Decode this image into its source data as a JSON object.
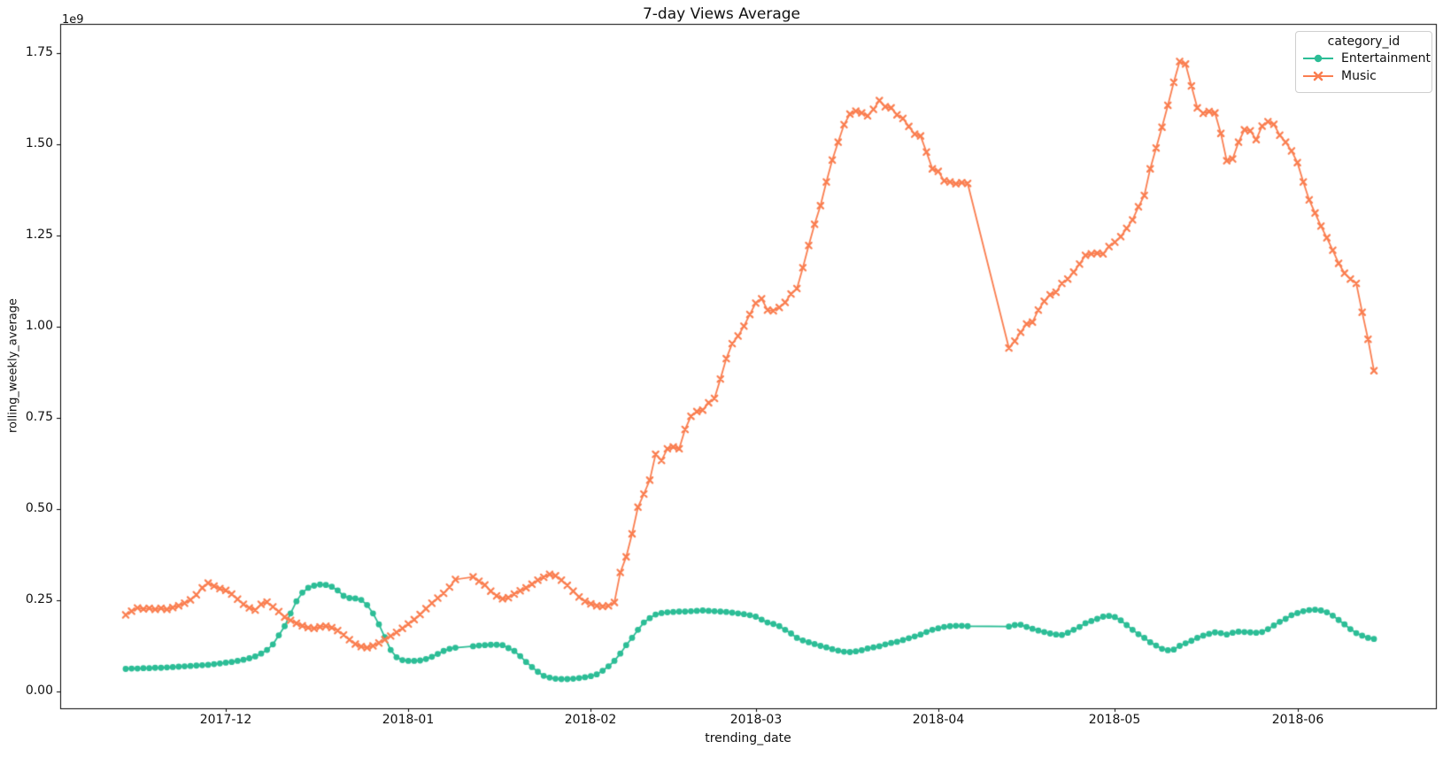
{
  "figure": {
    "title": "7-day Views Average",
    "xlabel": "trending_date",
    "ylabel": "rolling_weekly_average",
    "offset_label": "1e9",
    "background_color": "#ffffff",
    "spine_color": "#000000"
  },
  "legend": {
    "title": "category_id",
    "position": "upper right",
    "entries": [
      {
        "label": "Entertainment",
        "color": "#2cbd96",
        "marker": "circle"
      },
      {
        "label": "Music",
        "color": "#fa7e50",
        "marker": "x"
      }
    ]
  },
  "chart_data": {
    "type": "line",
    "title": "7-day Views Average",
    "xlabel": "trending_date",
    "ylabel": "rolling_weekly_average",
    "y_scale_factor": 1000000000,
    "y_offset_label": "1e9",
    "grid": false,
    "legend_position": "upper right",
    "ylim_1e9": [
      -0.045,
      1.83
    ],
    "y_tick_labels": [
      "0.00",
      "0.25",
      "0.50",
      "0.75",
      "1.00",
      "1.25",
      "1.50",
      "1.75"
    ],
    "x_tick_labels": [
      "2017-12",
      "2018-01",
      "2018-02",
      "2018-03",
      "2018-04",
      "2018-05",
      "2018-06"
    ],
    "missing_dates_note": "null values = dates absent from data; line connects across gaps without markers",
    "dates": [
      "2017-11-14",
      "2017-11-15",
      "2017-11-16",
      "2017-11-17",
      "2017-11-18",
      "2017-11-19",
      "2017-11-20",
      "2017-11-21",
      "2017-11-22",
      "2017-11-23",
      "2017-11-24",
      "2017-11-25",
      "2017-11-26",
      "2017-11-27",
      "2017-11-28",
      "2017-11-29",
      "2017-11-30",
      "2017-12-01",
      "2017-12-02",
      "2017-12-03",
      "2017-12-04",
      "2017-12-05",
      "2017-12-06",
      "2017-12-07",
      "2017-12-08",
      "2017-12-09",
      "2017-12-10",
      "2017-12-11",
      "2017-12-12",
      "2017-12-13",
      "2017-12-14",
      "2017-12-15",
      "2017-12-16",
      "2017-12-17",
      "2017-12-18",
      "2017-12-19",
      "2017-12-20",
      "2017-12-21",
      "2017-12-22",
      "2017-12-23",
      "2017-12-24",
      "2017-12-25",
      "2017-12-26",
      "2017-12-27",
      "2017-12-28",
      "2017-12-29",
      "2017-12-30",
      "2017-12-31",
      "2018-01-01",
      "2018-01-02",
      "2018-01-03",
      "2018-01-04",
      "2018-01-05",
      "2018-01-06",
      "2018-01-07",
      "2018-01-08",
      "2018-01-09",
      "2018-01-10",
      "2018-01-11",
      "2018-01-12",
      "2018-01-13",
      "2018-01-14",
      "2018-01-15",
      "2018-01-16",
      "2018-01-17",
      "2018-01-18",
      "2018-01-19",
      "2018-01-20",
      "2018-01-21",
      "2018-01-22",
      "2018-01-23",
      "2018-01-24",
      "2018-01-25",
      "2018-01-26",
      "2018-01-27",
      "2018-01-28",
      "2018-01-29",
      "2018-01-30",
      "2018-01-31",
      "2018-02-01",
      "2018-02-02",
      "2018-02-03",
      "2018-02-04",
      "2018-02-05",
      "2018-02-06",
      "2018-02-07",
      "2018-02-08",
      "2018-02-09",
      "2018-02-10",
      "2018-02-11",
      "2018-02-12",
      "2018-02-13",
      "2018-02-14",
      "2018-02-15",
      "2018-02-16",
      "2018-02-17",
      "2018-02-18",
      "2018-02-19",
      "2018-02-20",
      "2018-02-21",
      "2018-02-22",
      "2018-02-23",
      "2018-02-24",
      "2018-02-25",
      "2018-02-26",
      "2018-02-27",
      "2018-02-28",
      "2018-03-01",
      "2018-03-02",
      "2018-03-03",
      "2018-03-04",
      "2018-03-05",
      "2018-03-06",
      "2018-03-07",
      "2018-03-08",
      "2018-03-09",
      "2018-03-10",
      "2018-03-11",
      "2018-03-12",
      "2018-03-13",
      "2018-03-14",
      "2018-03-15",
      "2018-03-16",
      "2018-03-17",
      "2018-03-18",
      "2018-03-19",
      "2018-03-20",
      "2018-03-21",
      "2018-03-22",
      "2018-03-23",
      "2018-03-24",
      "2018-03-25",
      "2018-03-26",
      "2018-03-27",
      "2018-03-28",
      "2018-03-29",
      "2018-03-30",
      "2018-03-31",
      "2018-04-01",
      "2018-04-02",
      "2018-04-03",
      "2018-04-04",
      "2018-04-05",
      "2018-04-06",
      "2018-04-07",
      "2018-04-08",
      "2018-04-09",
      "2018-04-10",
      "2018-04-11",
      "2018-04-12",
      "2018-04-13",
      "2018-04-14",
      "2018-04-15",
      "2018-04-16",
      "2018-04-17",
      "2018-04-18",
      "2018-04-19",
      "2018-04-20",
      "2018-04-21",
      "2018-04-22",
      "2018-04-23",
      "2018-04-24",
      "2018-04-25",
      "2018-04-26",
      "2018-04-27",
      "2018-04-28",
      "2018-04-29",
      "2018-04-30",
      "2018-05-01",
      "2018-05-02",
      "2018-05-03",
      "2018-05-04",
      "2018-05-05",
      "2018-05-06",
      "2018-05-07",
      "2018-05-08",
      "2018-05-09",
      "2018-05-10",
      "2018-05-11",
      "2018-05-12",
      "2018-05-13",
      "2018-05-14",
      "2018-05-15",
      "2018-05-16",
      "2018-05-17",
      "2018-05-18",
      "2018-05-19",
      "2018-05-20",
      "2018-05-21",
      "2018-05-22",
      "2018-05-23",
      "2018-05-24",
      "2018-05-25",
      "2018-05-26",
      "2018-05-27",
      "2018-05-28",
      "2018-05-29",
      "2018-05-30",
      "2018-05-31",
      "2018-06-01",
      "2018-06-02",
      "2018-06-03",
      "2018-06-04",
      "2018-06-05",
      "2018-06-06",
      "2018-06-07",
      "2018-06-08",
      "2018-06-09",
      "2018-06-10",
      "2018-06-11",
      "2018-06-12",
      "2018-06-13",
      "2018-06-14"
    ],
    "series": [
      {
        "name": "Entertainment",
        "color": "#2cbd96",
        "marker": "circle",
        "values_1e9": [
          0.063,
          0.064,
          0.064,
          0.065,
          0.065,
          0.066,
          0.066,
          0.067,
          0.068,
          0.069,
          0.07,
          0.071,
          0.072,
          0.073,
          0.074,
          0.076,
          0.078,
          0.08,
          0.082,
          0.085,
          0.088,
          0.092,
          0.097,
          0.105,
          0.115,
          0.13,
          0.155,
          0.18,
          0.215,
          0.248,
          0.272,
          0.285,
          0.291,
          0.294,
          0.293,
          0.288,
          0.278,
          0.263,
          0.257,
          0.256,
          0.252,
          0.238,
          0.215,
          0.185,
          0.15,
          0.115,
          0.095,
          0.087,
          0.085,
          0.085,
          0.086,
          0.09,
          0.096,
          0.104,
          0.112,
          0.118,
          0.121,
          null,
          null,
          0.125,
          0.127,
          0.128,
          0.129,
          0.129,
          0.128,
          0.12,
          0.112,
          0.098,
          0.082,
          0.068,
          0.055,
          0.044,
          0.039,
          0.036,
          0.035,
          0.035,
          0.036,
          0.038,
          0.04,
          0.043,
          0.048,
          0.058,
          0.07,
          0.085,
          0.105,
          0.128,
          0.148,
          0.17,
          0.19,
          0.202,
          0.212,
          0.216,
          0.218,
          0.219,
          0.22,
          0.22,
          0.221,
          0.222,
          0.223,
          0.222,
          0.221,
          0.22,
          0.219,
          0.217,
          0.215,
          0.213,
          0.21,
          0.206,
          0.198,
          0.19,
          0.186,
          0.18,
          0.17,
          0.16,
          0.148,
          0.141,
          0.136,
          0.131,
          0.126,
          0.122,
          0.117,
          0.113,
          0.11,
          0.109,
          0.111,
          0.114,
          0.119,
          0.122,
          0.125,
          0.13,
          0.134,
          0.137,
          0.142,
          0.147,
          0.152,
          0.157,
          0.164,
          0.17,
          0.174,
          0.178,
          0.18,
          0.181,
          0.181,
          0.18,
          null,
          null,
          null,
          null,
          null,
          null,
          0.179,
          0.183,
          0.184,
          0.178,
          0.173,
          0.168,
          0.164,
          0.16,
          0.157,
          0.156,
          0.162,
          0.17,
          0.178,
          0.188,
          0.194,
          0.2,
          0.206,
          0.208,
          0.205,
          0.196,
          0.183,
          0.17,
          0.158,
          0.148,
          0.136,
          0.127,
          0.118,
          0.114,
          0.116,
          0.126,
          0.133,
          0.14,
          0.148,
          0.154,
          0.159,
          0.163,
          0.161,
          0.157,
          0.162,
          0.165,
          0.164,
          0.163,
          0.162,
          0.164,
          0.172,
          0.182,
          0.192,
          0.2,
          0.21,
          0.216,
          0.221,
          0.224,
          0.225,
          0.223,
          0.218,
          0.209,
          0.197,
          0.185,
          0.172,
          0.161,
          0.154,
          0.148,
          0.145
        ]
      },
      {
        "name": "Music",
        "color": "#fa7e50",
        "marker": "x",
        "values_1e9": [
          0.211,
          0.221,
          0.23,
          0.227,
          0.229,
          0.226,
          0.229,
          0.226,
          0.231,
          0.236,
          0.243,
          0.252,
          0.266,
          0.285,
          0.298,
          0.29,
          0.283,
          0.278,
          0.268,
          0.254,
          0.24,
          0.23,
          0.224,
          0.24,
          0.246,
          0.233,
          0.22,
          0.205,
          0.196,
          0.188,
          0.181,
          0.176,
          0.174,
          0.178,
          0.18,
          0.176,
          0.168,
          0.156,
          0.143,
          0.131,
          0.124,
          0.121,
          0.126,
          0.134,
          0.143,
          0.153,
          0.163,
          0.174,
          0.186,
          0.198,
          0.212,
          0.228,
          0.243,
          0.257,
          0.27,
          0.287,
          0.308,
          null,
          null,
          0.315,
          0.303,
          0.293,
          0.276,
          0.263,
          0.255,
          0.258,
          0.268,
          0.277,
          0.285,
          0.295,
          0.306,
          0.314,
          0.322,
          0.318,
          0.306,
          0.292,
          0.276,
          0.26,
          0.248,
          0.241,
          0.236,
          0.234,
          0.236,
          0.245,
          0.327,
          0.37,
          0.433,
          0.506,
          0.542,
          0.58,
          0.651,
          0.634,
          0.666,
          0.671,
          0.666,
          0.719,
          0.755,
          0.768,
          0.772,
          0.792,
          0.804,
          0.857,
          0.913,
          0.954,
          0.975,
          1.002,
          1.034,
          1.065,
          1.077,
          1.046,
          1.044,
          1.053,
          1.067,
          1.09,
          1.105,
          1.162,
          1.223,
          1.281,
          1.332,
          1.397,
          1.457,
          1.506,
          1.554,
          1.583,
          1.591,
          1.586,
          1.578,
          1.596,
          1.62,
          1.603,
          1.6,
          1.581,
          1.571,
          1.549,
          1.528,
          1.523,
          1.479,
          1.433,
          1.426,
          1.4,
          1.397,
          1.392,
          1.395,
          1.393,
          null,
          null,
          null,
          null,
          null,
          null,
          0.942,
          0.961,
          0.985,
          1.008,
          1.013,
          1.046,
          1.07,
          1.088,
          1.095,
          1.119,
          1.131,
          1.15,
          1.172,
          1.196,
          1.2,
          1.202,
          1.2,
          1.22,
          1.232,
          1.247,
          1.27,
          1.293,
          1.329,
          1.36,
          1.433,
          1.49,
          1.547,
          1.607,
          1.67,
          1.727,
          1.72,
          1.66,
          1.6,
          1.585,
          1.59,
          1.586,
          1.53,
          1.455,
          1.46,
          1.506,
          1.54,
          1.537,
          1.513,
          1.55,
          1.562,
          1.555,
          1.525,
          1.506,
          1.482,
          1.45,
          1.397,
          1.348,
          1.312,
          1.276,
          1.244,
          1.21,
          1.174,
          1.147,
          1.131,
          1.119,
          1.04,
          0.966,
          0.88
        ]
      }
    ]
  }
}
